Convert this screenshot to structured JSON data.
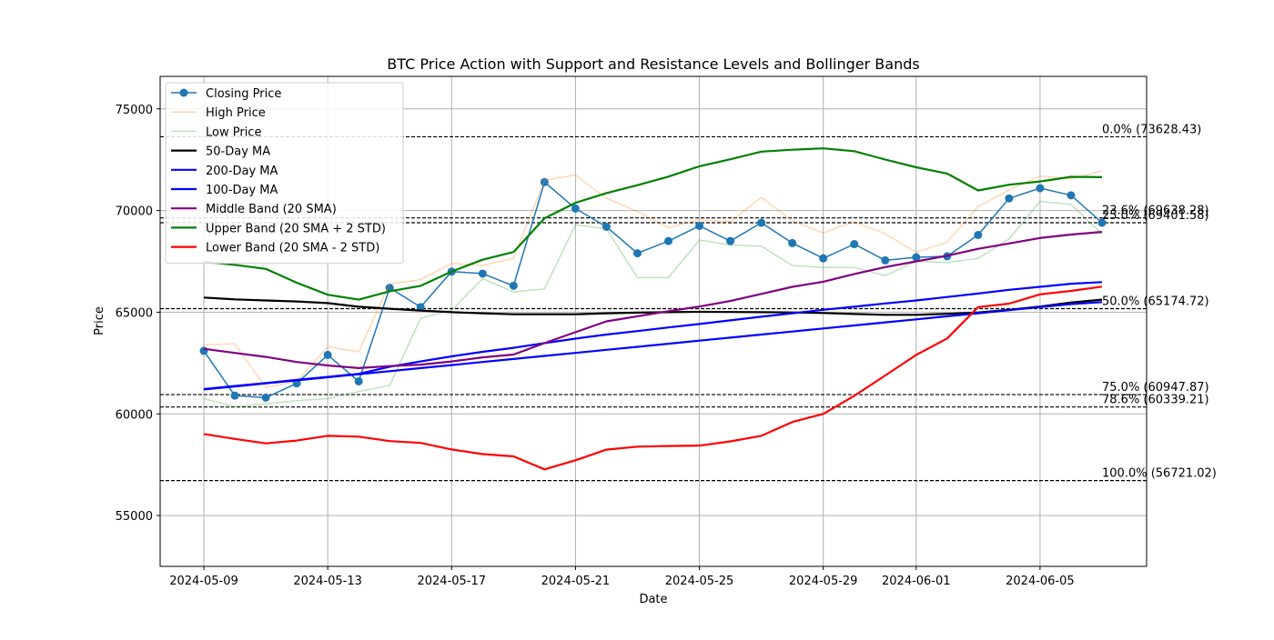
{
  "chart_data": {
    "type": "line",
    "title": "BTC Price Action with Support and Resistance Levels and Bollinger Bands",
    "xlabel": "Date",
    "ylabel": "Price",
    "ylim": [
      52500,
      76600
    ],
    "y_ticks": [
      55000,
      60000,
      65000,
      70000,
      75000
    ],
    "y_tick_labels": [
      "55000",
      "60000",
      "65000",
      "70000",
      "75000"
    ],
    "x_tick_labels": [
      "2024-05-09",
      "2024-05-13",
      "2024-05-17",
      "2024-05-21",
      "2024-05-25",
      "2024-05-29",
      "2024-06-01",
      "2024-06-05"
    ],
    "grid": true,
    "legend_position": "top-left",
    "dates": [
      "2024-05-09",
      "2024-05-10",
      "2024-05-11",
      "2024-05-12",
      "2024-05-13",
      "2024-05-14",
      "2024-05-15",
      "2024-05-16",
      "2024-05-17",
      "2024-05-18",
      "2024-05-19",
      "2024-05-20",
      "2024-05-21",
      "2024-05-22",
      "2024-05-23",
      "2024-05-24",
      "2024-05-25",
      "2024-05-26",
      "2024-05-27",
      "2024-05-28",
      "2024-05-29",
      "2024-05-30",
      "2024-05-31",
      "2024-06-01",
      "2024-06-02",
      "2024-06-03",
      "2024-06-04",
      "2024-06-05",
      "2024-06-06",
      "2024-06-07"
    ],
    "series": [
      {
        "name": "Closing Price",
        "color": "#1f77b4",
        "width": 1.5,
        "opacity": 1,
        "marker": true,
        "values": [
          63100,
          60900,
          60800,
          61500,
          62900,
          61600,
          66200,
          65250,
          67000,
          66900,
          66300,
          71400,
          70100,
          69200,
          67900,
          68500,
          69250,
          68500,
          69400,
          68400,
          67650,
          68350,
          67550,
          67700,
          67750,
          68800,
          70600,
          71100,
          70750,
          69400
        ]
      },
      {
        "name": "High Price",
        "color": "#ff7f0e",
        "width": 1.5,
        "opacity": 0.3,
        "values": [
          63400,
          63450,
          61300,
          61600,
          63300,
          63050,
          66400,
          66600,
          67400,
          67300,
          67650,
          71500,
          71750,
          70600,
          69950,
          69150,
          69550,
          69450,
          70650,
          69500,
          68900,
          69450,
          68850,
          67950,
          68450,
          70200,
          71000,
          71700,
          71550,
          71950
        ]
      },
      {
        "name": "Low Price",
        "color": "#2ca02c",
        "width": 1.5,
        "opacity": 0.3,
        "values": [
          60750,
          60350,
          60500,
          60650,
          60750,
          61100,
          61400,
          64700,
          65100,
          66650,
          66000,
          66150,
          69300,
          69100,
          66700,
          66700,
          68550,
          68300,
          68250,
          67300,
          67200,
          67200,
          66800,
          67500,
          67450,
          67650,
          68600,
          70450,
          70300,
          68850
        ]
      },
      {
        "name": "50-Day MA",
        "color": "#000000",
        "width": 2.2,
        "opacity": 1,
        "values": [
          65720,
          65630,
          65580,
          65530,
          65450,
          65270,
          65170,
          65080,
          65000,
          64950,
          64900,
          64900,
          64900,
          64950,
          64980,
          65000,
          65020,
          65010,
          65000,
          64990,
          64960,
          64910,
          64870,
          64870,
          64920,
          64990,
          65120,
          65280,
          65480,
          65620
        ]
      },
      {
        "name": "200-Day MA",
        "color": "#0000ff",
        "width": 2.2,
        "opacity": 1,
        "values": [
          61200,
          61350,
          61500,
          61650,
          61800,
          61950,
          62100,
          62250,
          62400,
          62550,
          62700,
          62850,
          63000,
          63150,
          63300,
          63450,
          63600,
          63750,
          63900,
          64050,
          64200,
          64350,
          64500,
          64650,
          64800,
          64950,
          65100,
          65250,
          65400,
          65500
        ]
      },
      {
        "name": "100-Day MA",
        "color": "#0000ff",
        "width": 2.2,
        "opacity": 1,
        "values": [
          61220,
          61370,
          61520,
          61670,
          61820,
          61970,
          62320,
          62580,
          62830,
          63050,
          63250,
          63480,
          63700,
          63900,
          64070,
          64250,
          64420,
          64600,
          64780,
          64950,
          65120,
          65270,
          65430,
          65580,
          65750,
          65920,
          66100,
          66250,
          66400,
          66480
        ]
      },
      {
        "name": "Middle Band (20 SMA)",
        "color": "#800080",
        "width": 2.2,
        "opacity": 1,
        "values": [
          63200,
          63000,
          62800,
          62550,
          62380,
          62250,
          62350,
          62420,
          62580,
          62780,
          62920,
          63480,
          64020,
          64550,
          64800,
          65050,
          65280,
          65550,
          65900,
          66250,
          66500,
          66880,
          67220,
          67500,
          67780,
          68120,
          68380,
          68650,
          68820,
          68950
        ]
      },
      {
        "name": "Upper Band (20 SMA + 2 STD)",
        "color": "#008000",
        "width": 2.2,
        "opacity": 1,
        "values": [
          67480,
          67330,
          67130,
          66450,
          65860,
          65620,
          66030,
          66300,
          67000,
          67580,
          67960,
          69620,
          70380,
          70860,
          71250,
          71670,
          72180,
          72520,
          72900,
          72990,
          73060,
          72920,
          72510,
          72130,
          71820,
          70990,
          71270,
          71430,
          71660,
          71640
        ]
      },
      {
        "name": "Lower Band (20 SMA - 2 STD)",
        "color": "#ff0000",
        "width": 2.2,
        "opacity": 1,
        "values": [
          59010,
          58770,
          58550,
          58690,
          58920,
          58880,
          58660,
          58570,
          58250,
          58020,
          57910,
          57270,
          57720,
          58240,
          58390,
          58420,
          58440,
          58650,
          58920,
          59600,
          60000,
          60890,
          61890,
          62900,
          63710,
          65250,
          65420,
          65880,
          66050,
          66260
        ]
      }
    ],
    "fib_levels": [
      {
        "label": "0.0% (73628.43)",
        "value": 73628.43
      },
      {
        "label": "23.6% (69638.28)",
        "value": 69638.28
      },
      {
        "label": "25.0% (69401.58)",
        "value": 69401.58
      },
      {
        "label": "50.0% (65174.72)",
        "value": 65174.72
      },
      {
        "label": "75.0% (60947.87)",
        "value": 60947.87
      },
      {
        "label": "78.6% (60339.21)",
        "value": 60339.21
      },
      {
        "label": "100.0% (56721.02)",
        "value": 56721.02
      }
    ]
  }
}
